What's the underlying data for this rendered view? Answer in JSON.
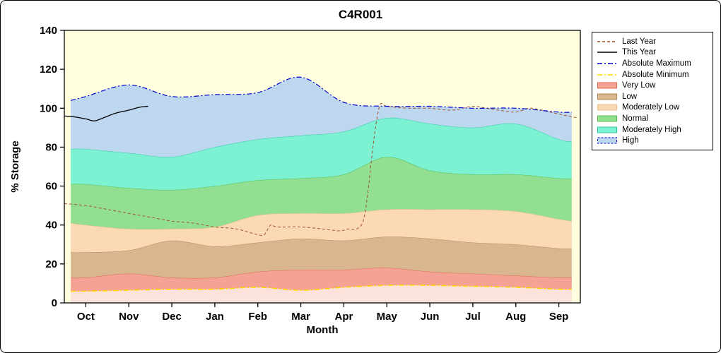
{
  "frame": {
    "background": "#FFFFFF",
    "border_color": "#000000"
  },
  "chart_data": {
    "type": "area",
    "title": "C4R001",
    "xlabel": "Month",
    "ylabel": "% Storage",
    "xlim": [
      -0.5,
      11.5
    ],
    "ylim": [
      0,
      140
    ],
    "y_ticks": [
      0,
      20,
      40,
      60,
      80,
      100,
      120,
      140
    ],
    "months": [
      "Oct",
      "Nov",
      "Dec",
      "Jan",
      "Feb",
      "Mar",
      "Apr",
      "May",
      "Jun",
      "Jul",
      "Aug",
      "Sep"
    ],
    "plot_bg": "#FFFFE0",
    "grid": false,
    "legend_position": "right-outside",
    "band_x": [
      -0.35,
      0,
      1,
      2,
      3,
      4,
      5,
      6,
      7,
      8,
      9,
      10,
      11,
      11.3
    ],
    "boundaries": {
      "abs_min": [
        6,
        6,
        6.5,
        7,
        7,
        8,
        6.5,
        8,
        9,
        9,
        8.5,
        8,
        7,
        7
      ],
      "very_low_top": [
        13,
        13,
        15,
        13,
        13,
        16,
        17,
        17,
        18,
        16,
        15,
        14,
        13,
        13
      ],
      "low_top": [
        26,
        26,
        27,
        32,
        29,
        31,
        33,
        32,
        34,
        33,
        31,
        30,
        28,
        28
      ],
      "mod_low_top": [
        41,
        40,
        38,
        38,
        39,
        45,
        46,
        46,
        48,
        48,
        48,
        47,
        43,
        42
      ],
      "normal_top": [
        61,
        61,
        59,
        58,
        60,
        63,
        64,
        66,
        75,
        68,
        66,
        66,
        64,
        64
      ],
      "mod_high_top": [
        79,
        79,
        77,
        75,
        80,
        84,
        86,
        88,
        95,
        92,
        90,
        92,
        84,
        83
      ],
      "abs_max": [
        104,
        106,
        112,
        106,
        107,
        108,
        116,
        103,
        101,
        101,
        100,
        100,
        98,
        98
      ]
    },
    "bands": [
      {
        "name": "below-minimum",
        "label": null,
        "fill": "#FBE2DB",
        "edge": null,
        "lower": "zero",
        "upper": "abs_min"
      },
      {
        "name": "very-low",
        "label": "Very Low",
        "fill": "#F4A294",
        "edge": "#DE6B55",
        "lower": "abs_min",
        "upper": "very_low_top"
      },
      {
        "name": "low",
        "label": "Low",
        "fill": "#D9B68F",
        "edge": "#B58A5C",
        "lower": "very_low_top",
        "upper": "low_top"
      },
      {
        "name": "moderately-low",
        "label": "Moderately Low",
        "fill": "#FBD9B4",
        "edge": "#EFBD8C",
        "lower": "low_top",
        "upper": "mod_low_top"
      },
      {
        "name": "normal",
        "label": "Normal",
        "fill": "#92DF92",
        "edge": "#55BE55",
        "lower": "mod_low_top",
        "upper": "normal_top"
      },
      {
        "name": "moderately-high",
        "label": "Moderately High",
        "fill": "#7CF2D2",
        "edge": "#2FC9A8",
        "lower": "normal_top",
        "upper": "mod_high_top"
      },
      {
        "name": "high",
        "label": "High",
        "fill": "#BDD7EE",
        "edge": null,
        "lower": "mod_high_top",
        "upper": "abs_max"
      }
    ],
    "lines": [
      {
        "name": "last-year",
        "label": "Last Year",
        "color": "#A0522D",
        "dash": "4 3",
        "width": 1,
        "x": [
          -0.5,
          0,
          0.5,
          1,
          1.5,
          2,
          2.5,
          3,
          3.5,
          4,
          4.15,
          4.3,
          4.45,
          5,
          5.5,
          5.9,
          6.1,
          6.3,
          6.45,
          6.55,
          6.65,
          6.75,
          6.85,
          7,
          7.5,
          8,
          8.5,
          9,
          9.3,
          9.6,
          10,
          10.3,
          10.6,
          11,
          11.45
        ],
        "y": [
          51,
          50,
          48,
          46,
          44,
          42,
          41,
          39,
          38,
          35,
          35,
          40,
          39,
          39,
          38,
          37,
          38,
          38,
          42,
          55,
          75,
          92,
          102,
          101,
          100,
          100,
          99,
          101,
          100,
          99,
          98,
          100,
          99,
          97,
          95
        ]
      },
      {
        "name": "this-year",
        "label": "This Year",
        "color": "#000000",
        "dash": null,
        "width": 1.3,
        "x": [
          -0.5,
          -0.25,
          0,
          0.2,
          0.4,
          0.7,
          1,
          1.25,
          1.45
        ],
        "y": [
          96,
          95.5,
          94.5,
          93.5,
          95,
          97.5,
          99,
          100.5,
          101
        ]
      },
      {
        "name": "absolute-maximum",
        "label": "Absolute Maximum",
        "color": "#0000CD",
        "dash": "7 3 2 3",
        "width": 1.2,
        "x": "band_x",
        "y": "abs_max"
      },
      {
        "name": "absolute-minimum",
        "label": "Absolute Minimum",
        "color": "#FFD700",
        "dash": "7 3 2 3",
        "width": 1.6,
        "x": "band_x",
        "y": "abs_min"
      }
    ],
    "legend": [
      {
        "label": "Last Year",
        "type": "line",
        "color": "#A0522D",
        "dash": "dashed"
      },
      {
        "label": "This Year",
        "type": "line",
        "color": "#000000",
        "dash": "solid"
      },
      {
        "label": "Absolute Maximum",
        "type": "line",
        "color": "#0000CD",
        "dash": "dashdot"
      },
      {
        "label": "Absolute Minimum",
        "type": "line",
        "color": "#FFD700",
        "dash": "dashdot"
      },
      {
        "label": "Very Low",
        "type": "band",
        "color": "#F4A294",
        "edge": "#DE6B55"
      },
      {
        "label": "Low",
        "type": "band",
        "color": "#D9B68F",
        "edge": "#B58A5C"
      },
      {
        "label": "Moderately Low",
        "type": "band",
        "color": "#FBD9B4",
        "edge": "#EFBD8C"
      },
      {
        "label": "Normal",
        "type": "band",
        "color": "#92DF92",
        "edge": "#55BE55"
      },
      {
        "label": "Moderately High",
        "type": "band",
        "color": "#7CF2D2",
        "edge": "#2FC9A8"
      },
      {
        "label": "High",
        "type": "band",
        "color": "#BDD7EE",
        "edge": "#0000CD",
        "edge_dash": true
      }
    ]
  }
}
